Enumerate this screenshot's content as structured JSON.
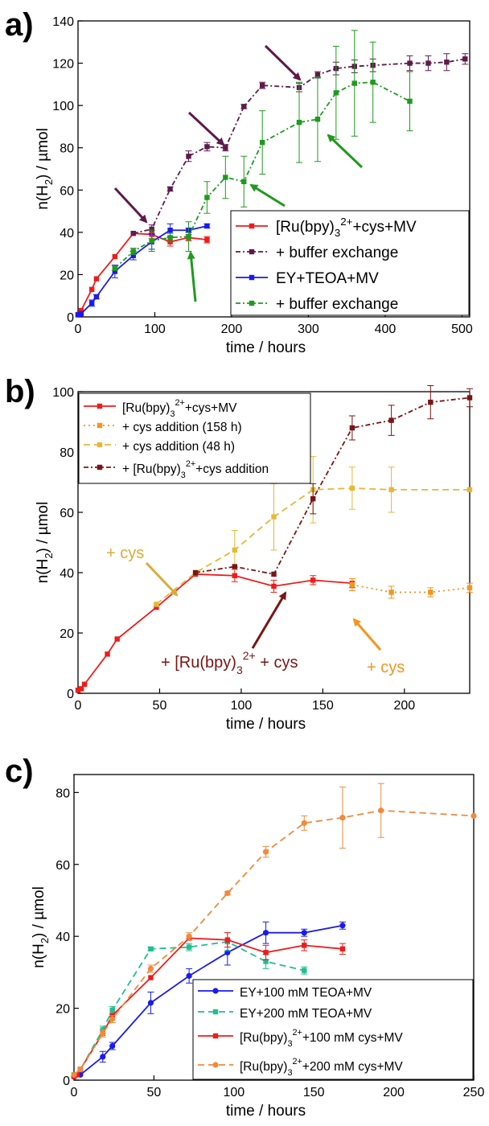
{
  "colors": {
    "red": "#ee1c1c",
    "purple": "#5e1a4b",
    "blue": "#1a1aee",
    "green": "#1f9a1f",
    "orange_b": "#f5951d",
    "gold_b": "#e6b83a",
    "maroon_b": "#7a1515",
    "teal_c": "#1fbf8f",
    "orange_c": "#f18a3c",
    "arrow_green": "#1f9a1f",
    "arrow_purple": "#5e1a4b",
    "arrow_gold": "#d9ac3a",
    "arrow_maroon": "#7a1515",
    "arrow_orange": "#f5951d"
  },
  "chart_data": [
    {
      "panel": "a)",
      "type": "line",
      "xlabel": "time / hours",
      "ylabel": "n(H2) / µmol",
      "xlim": [
        0,
        510
      ],
      "ylim": [
        0,
        140
      ],
      "xticks": [
        "0",
        "100",
        "200",
        "300",
        "400",
        "500"
      ],
      "yticks": [
        "0",
        "20",
        "40",
        "60",
        "80",
        "100",
        "120",
        "140"
      ],
      "legend_position": "center-right",
      "series": [
        {
          "name": "[Ru(bpy)3]2++cys+MV",
          "style": "solid",
          "color": "#ee1c1c",
          "x": [
            0,
            2,
            4,
            18,
            24,
            48,
            72,
            96,
            120,
            144,
            168
          ],
          "y": [
            1,
            1.5,
            3,
            13,
            18,
            28.5,
            39.5,
            39,
            35.5,
            37.5,
            36.5
          ],
          "err": [
            0,
            0,
            0,
            0,
            0,
            0,
            0,
            2,
            2,
            1.5,
            1.5
          ]
        },
        {
          "name": "+ buffer exchange",
          "style": "dashdot",
          "color": "#5e1a4b",
          "x": [
            72,
            96,
            120,
            144,
            168,
            192,
            216,
            240,
            288,
            312,
            336,
            360,
            384,
            432,
            456,
            480,
            504
          ],
          "y": [
            39.5,
            41.5,
            60.5,
            76,
            80.5,
            80,
            99.5,
            109.5,
            108.5,
            114.5,
            117.5,
            118.5,
            119,
            120,
            120,
            120.5,
            122
          ],
          "err": [
            0,
            2,
            1,
            2.5,
            2,
            1.5,
            1,
            1.5,
            2,
            1.5,
            3,
            3,
            3,
            3.5,
            3.5,
            4,
            2.5
          ]
        },
        {
          "name": "EY+TEOA+MV",
          "style": "solid",
          "color": "#1a1aee",
          "x": [
            0,
            4,
            18,
            24,
            48,
            72,
            96,
            120,
            144,
            168
          ],
          "y": [
            1,
            1.5,
            6.5,
            9.5,
            21.5,
            29,
            35.5,
            41,
            41,
            43
          ],
          "err": [
            0,
            0,
            1.5,
            1,
            3,
            2,
            3.5,
            3,
            1,
            1
          ]
        },
        {
          "name": "+ buffer exchange",
          "style": "dashdot",
          "color": "#1f9a1f",
          "x": [
            48,
            72,
            96,
            120,
            144,
            168,
            192,
            216,
            240,
            288,
            312,
            336,
            360,
            384,
            432
          ],
          "y": [
            23,
            31,
            36,
            37.5,
            38,
            56.5,
            66,
            64,
            82.5,
            92,
            93.5,
            106,
            110.5,
            111,
            102
          ],
          "err": [
            1,
            1.5,
            5,
            2,
            7,
            7.5,
            10,
            12,
            15,
            19,
            20,
            22,
            25,
            19,
            14
          ]
        }
      ],
      "annotations": [
        {
          "type": "arrow",
          "color": "purple",
          "pointing_at_hours": 96
        },
        {
          "type": "arrow",
          "color": "purple",
          "pointing_at_hours": 192
        },
        {
          "type": "arrow",
          "color": "purple",
          "pointing_at_hours": 288
        },
        {
          "type": "arrow",
          "color": "green",
          "pointing_at_hours": 144
        },
        {
          "type": "arrow",
          "color": "green",
          "pointing_at_hours": 216
        },
        {
          "type": "arrow",
          "color": "green",
          "pointing_at_hours": 312
        }
      ]
    },
    {
      "panel": "b)",
      "type": "line",
      "xlabel": "time / hours",
      "ylabel": "n(H2) / µmol",
      "xlim": [
        0,
        240
      ],
      "ylim": [
        0,
        100
      ],
      "xticks": [
        "0",
        "50",
        "100",
        "150",
        "200"
      ],
      "yticks": [
        "0",
        "20",
        "40",
        "60",
        "80",
        "100"
      ],
      "legend_position": "top-left",
      "series": [
        {
          "name": "[Ru(bpy)3]2++cys+MV",
          "style": "solid",
          "color": "#ee1c1c",
          "x": [
            0,
            2,
            4,
            18,
            24,
            48,
            72,
            96,
            120,
            144,
            168
          ],
          "y": [
            1,
            1.5,
            3,
            13,
            18,
            28.5,
            39.5,
            39,
            35.5,
            37.5,
            36.5
          ],
          "err": [
            0,
            0,
            0,
            0,
            0,
            0,
            0,
            2,
            2,
            1.5,
            1.5
          ]
        },
        {
          "name": "+ cys addition (158 h)",
          "style": "dotted",
          "color": "#f5951d",
          "x": [
            168,
            192,
            216,
            240
          ],
          "y": [
            36,
            33.5,
            33.5,
            35
          ],
          "err": [
            2,
            2,
            1.5,
            1.5
          ]
        },
        {
          "name": "+ cys addition (48 h)",
          "style": "dashed",
          "color": "#e6b83a",
          "x": [
            48,
            72,
            96,
            120,
            144,
            168,
            192,
            240
          ],
          "y": [
            29.5,
            40,
            47.5,
            58.5,
            67.5,
            68,
            67.5,
            67.5
          ],
          "err": [
            0,
            0,
            6.5,
            11,
            11,
            7,
            7.5,
            0
          ]
        },
        {
          "name": "+ [Ru(bpy)3]2++cys addition",
          "style": "dashdot",
          "color": "#7a1515",
          "x": [
            72,
            96,
            120,
            144,
            168,
            192,
            216,
            240
          ],
          "y": [
            40,
            42,
            39.5,
            64.5,
            88,
            90.5,
            96.5,
            98
          ],
          "err": [
            0,
            0,
            0,
            5,
            4,
            5,
            5.5,
            3
          ]
        }
      ],
      "annotations": [
        {
          "type": "text",
          "label": "+ cys",
          "color": "gold"
        },
        {
          "type": "text",
          "label": "+ [Ru(bpy)3]2+ + cys",
          "color": "maroon"
        },
        {
          "type": "text",
          "label": "+ cys",
          "color": "orange"
        }
      ]
    },
    {
      "panel": "c)",
      "type": "line",
      "xlabel": "time / hours",
      "ylabel": "n(H2) / µmol",
      "xlim": [
        0,
        250
      ],
      "ylim": [
        0,
        85
      ],
      "xticks": [
        "0",
        "50",
        "100",
        "150",
        "200",
        "250"
      ],
      "yticks": [
        "0",
        "20",
        "40",
        "60",
        "80"
      ],
      "legend_position": "bottom-right",
      "series": [
        {
          "name": "EY+100 mM TEOA+MV",
          "style": "solid",
          "color": "#1a1aee",
          "marker": "circle",
          "x": [
            0,
            4,
            18,
            24,
            48,
            72,
            96,
            120,
            144,
            168
          ],
          "y": [
            1,
            1.5,
            6.5,
            9.5,
            21.5,
            29,
            35.5,
            41,
            41,
            43
          ],
          "err": [
            0,
            0,
            1.5,
            1,
            3,
            2,
            3.5,
            3,
            1,
            1
          ]
        },
        {
          "name": "EY+200 mM TEOA+MV",
          "style": "dashed",
          "color": "#1fbf8f",
          "marker": "square",
          "x": [
            0,
            4,
            18,
            24,
            48,
            72,
            96,
            120,
            144
          ],
          "y": [
            1.5,
            3,
            14,
            19.5,
            36.5,
            37,
            38.5,
            33,
            30.5
          ],
          "err": [
            0,
            0,
            1,
            1,
            0.5,
            1,
            2.5,
            2,
            1
          ]
        },
        {
          "name": "[Ru(bpy)3]2++100 mM cys+MV",
          "style": "solid",
          "color": "#ee1c1c",
          "marker": "square",
          "x": [
            0,
            2,
            4,
            18,
            24,
            48,
            72,
            96,
            120,
            144,
            168
          ],
          "y": [
            1,
            1.5,
            3,
            13,
            18,
            28.5,
            39.5,
            39,
            35.5,
            37.5,
            36.5
          ],
          "err": [
            0,
            0,
            0,
            0,
            0,
            0,
            0,
            2,
            2,
            1.5,
            1.5
          ]
        },
        {
          "name": "[Ru(bpy)3]2++200 mM cys+MV",
          "style": "dashed",
          "color": "#f18a3c",
          "marker": "circle",
          "x": [
            0,
            4,
            18,
            24,
            48,
            72,
            96,
            120,
            144,
            168,
            192,
            250
          ],
          "y": [
            1.5,
            3,
            13,
            17,
            31,
            40,
            52,
            63.5,
            71.5,
            73,
            75,
            73.5
          ],
          "err": [
            0,
            0,
            1,
            1,
            1,
            1,
            0.5,
            1.5,
            2,
            8.5,
            7.5,
            0
          ]
        }
      ]
    }
  ],
  "panels": {
    "a": {
      "letter": "a)",
      "xlabel": "time / hours",
      "ytitle_main": "n(H",
      "ytitle_sub": "2",
      "ytitle_tail": ") / µmol",
      "legend": [
        {
          "pre": "[Ru(bpy)",
          "sub": "3",
          "sup": "2+",
          "post": "+cys+MV"
        },
        {
          "pre": "+ buffer exchange",
          "sub": "",
          "sup": "",
          "post": ""
        },
        {
          "pre": "EY+TEOA+MV",
          "sub": "",
          "sup": "",
          "post": ""
        },
        {
          "pre": "+ buffer exchange",
          "sub": "",
          "sup": "",
          "post": ""
        }
      ]
    },
    "b": {
      "letter": "b)",
      "xlabel": "time / hours",
      "ytitle_main": "n(H",
      "ytitle_sub": "2",
      "ytitle_tail": ") / µmol",
      "legend": [
        {
          "pre": "[Ru(bpy)",
          "sub": "3",
          "sup": "2+",
          "post": "+cys+MV"
        },
        {
          "pre": "+ cys addition (158 h)",
          "sub": "",
          "sup": "",
          "post": ""
        },
        {
          "pre": "+ cys addition (48 h)",
          "sub": "",
          "sup": "",
          "post": ""
        },
        {
          "pre": "+ [Ru(bpy)",
          "sub": "3",
          "sup": "2+",
          "post": "+cys addition"
        }
      ],
      "annot_cys_left": "+ cys",
      "annot_ru": {
        "pre": "+ [Ru(bpy)",
        "sub": "3",
        "sup": "2+",
        "post": " + cys"
      },
      "annot_cys_right": "+ cys"
    },
    "c": {
      "letter": "c)",
      "xlabel": "time / hours",
      "ytitle_main": "n(H",
      "ytitle_sub": "2",
      "ytitle_tail": ") / µmol",
      "legend": [
        {
          "pre": "EY+100 mM TEOA+MV",
          "sub": "",
          "sup": "",
          "post": ""
        },
        {
          "pre": "EY+200 mM TEOA+MV",
          "sub": "",
          "sup": "",
          "post": ""
        },
        {
          "pre": "[Ru(bpy)",
          "sub": "3",
          "sup": "2+",
          "post": "+100 mM cys+MV"
        },
        {
          "pre": "[Ru(bpy)",
          "sub": "3",
          "sup": "2+",
          "post": "+200 mM cys+MV"
        }
      ]
    }
  }
}
